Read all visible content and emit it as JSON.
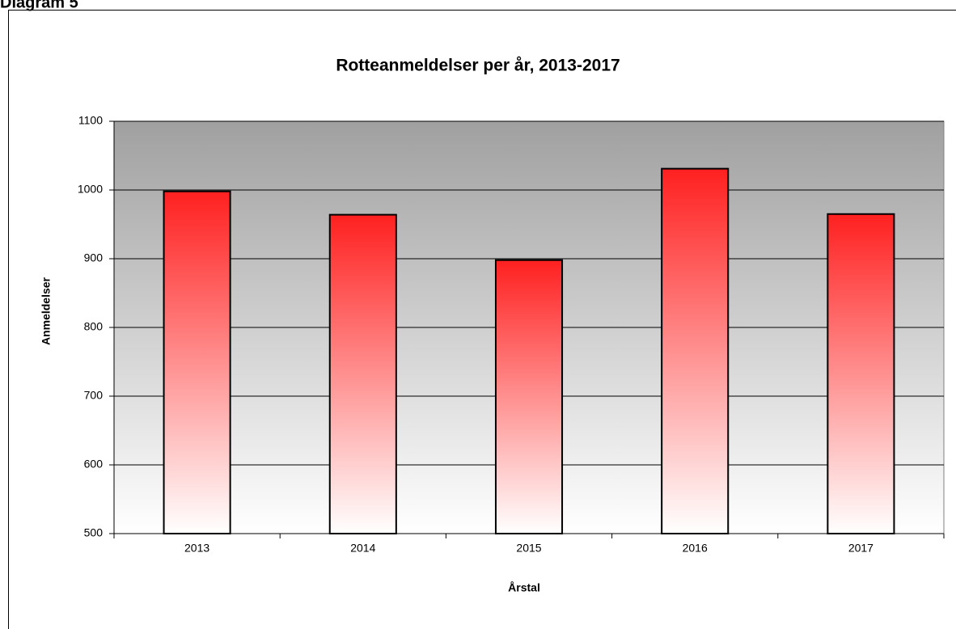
{
  "heading": "Diagram 5",
  "chart_data": {
    "type": "bar",
    "title": "Rotteanmeldelser per år, 2013-2017",
    "x_label": "Årstal",
    "y_label": "Anmeldelser",
    "categories": [
      "2013",
      "2014",
      "2015",
      "2016",
      "2017"
    ],
    "values": [
      998,
      964,
      898,
      1031,
      965
    ],
    "color": "#ff2020",
    "ylim": [
      500,
      1100
    ],
    "yticks": [
      500,
      600,
      700,
      800,
      900,
      1000,
      1100
    ],
    "grid": true
  }
}
